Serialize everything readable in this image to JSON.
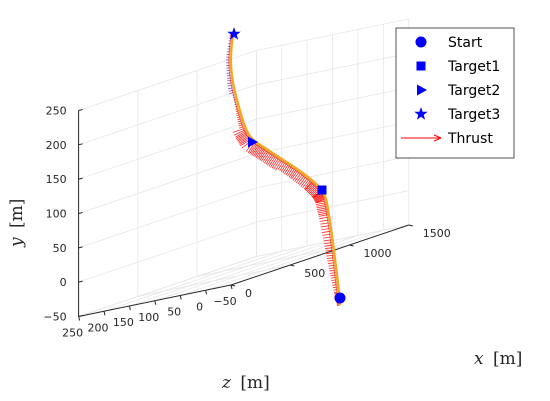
{
  "chart_data": {
    "type": "line3d",
    "axes": {
      "x": {
        "label": "x",
        "unit": "[m]",
        "ticks": [
          0,
          500,
          1000,
          1500
        ],
        "range": [
          0,
          1500
        ]
      },
      "y": {
        "label": "y",
        "unit": "[m]",
        "ticks": [
          -50,
          0,
          50,
          100,
          150,
          200,
          250
        ],
        "range": [
          -50,
          250
        ]
      },
      "z": {
        "label": "z",
        "unit": "[m]",
        "ticks": [
          -50,
          0,
          50,
          100,
          150,
          200,
          250
        ],
        "range": [
          -50,
          250
        ]
      }
    },
    "grid": true,
    "legend": {
      "placement": "top-right",
      "entries": [
        {
          "name": "Start",
          "marker": "circle"
        },
        {
          "name": "Target1",
          "marker": "square"
        },
        {
          "name": "Target2",
          "marker": "triangle-right"
        },
        {
          "name": "Target3",
          "marker": "star"
        },
        {
          "name": "Thrust",
          "marker": "arrow"
        }
      ]
    },
    "trajectory": {
      "color": "#f5a623",
      "points": [
        {
          "x": 0,
          "y": -25,
          "z": 0
        },
        {
          "x": 40,
          "y": -10,
          "z": 2
        },
        {
          "x": 100,
          "y": 25,
          "z": 5
        },
        {
          "x": 150,
          "y": 60,
          "z": 10
        },
        {
          "x": 200,
          "y": 105,
          "z": 13
        },
        {
          "x": 240,
          "y": 130,
          "z": 15
        },
        {
          "x": 280,
          "y": 138,
          "z": 20
        },
        {
          "x": 330,
          "y": 143,
          "z": 30
        },
        {
          "x": 380,
          "y": 155,
          "z": 45
        },
        {
          "x": 420,
          "y": 175,
          "z": 55
        },
        {
          "x": 460,
          "y": 190,
          "z": 62
        },
        {
          "x": 500,
          "y": 197,
          "z": 65
        },
        {
          "x": 540,
          "y": 200,
          "z": 72
        },
        {
          "x": 600,
          "y": 210,
          "z": 82
        },
        {
          "x": 640,
          "y": 232,
          "z": 92
        },
        {
          "x": 680,
          "y": 258,
          "z": 99
        },
        {
          "x": 720,
          "y": 275,
          "z": 103
        }
      ]
    },
    "markers": [
      {
        "name": "Start",
        "x": 0,
        "y": -25,
        "z": 0,
        "color": "#0000ff"
      },
      {
        "name": "Target1",
        "x": 240,
        "y": 130,
        "z": 15,
        "color": "#0000ff"
      },
      {
        "name": "Target2",
        "x": 500,
        "y": 197,
        "z": 65,
        "color": "#0000ff"
      },
      {
        "name": "Target3",
        "x": 720,
        "y": 275,
        "z": 103,
        "color": "#0000ff"
      }
    ],
    "thrust": {
      "color": "#ff0000",
      "start_color": "#0000ff"
    }
  }
}
